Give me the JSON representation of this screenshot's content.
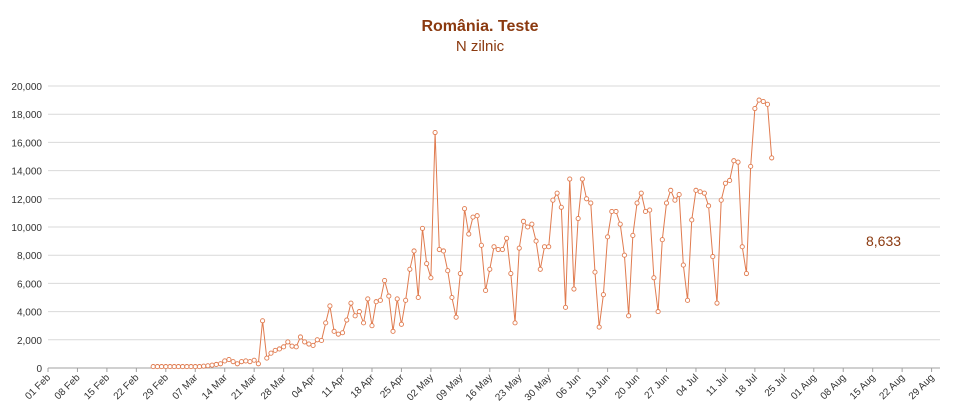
{
  "chart_data": {
    "type": "line",
    "title": "România. Teste",
    "subtitle": "N zilnic",
    "annotation": "8,633",
    "ylim": [
      0,
      20000
    ],
    "yticks": [
      0,
      2000,
      4000,
      6000,
      8000,
      10000,
      12000,
      14000,
      16000,
      18000,
      20000
    ],
    "ytick_labels": [
      "0",
      "2,000",
      "4,000",
      "6,000",
      "8,000",
      "10,000",
      "12,000",
      "14,000",
      "16,000",
      "18,000",
      "20,000"
    ],
    "xlim": [
      "2020-02-01",
      "2020-08-31"
    ],
    "xtick_labels": [
      "01 Feb",
      "08 Feb",
      "15 Feb",
      "22 Feb",
      "29 Feb",
      "07 Mar",
      "14 Mar",
      "21 Mar",
      "28 Mar",
      "04 Apr",
      "11 Apr",
      "18 Apr",
      "25 Apr",
      "02 May",
      "09 May",
      "16 May",
      "23 May",
      "30 May",
      "06 Jun",
      "13 Jun",
      "20 Jun",
      "27 Jun",
      "04 Jul",
      "11 Jul",
      "18 Jul",
      "25 Jul",
      "01 Aug",
      "08 Aug",
      "15 Aug",
      "22 Aug",
      "29 Aug"
    ],
    "grid": true,
    "line_color": "#E07B4F",
    "text_color": "#8B3A10",
    "series": [
      {
        "start_date": "2020-02-26",
        "values": [
          100,
          100,
          100,
          100,
          100,
          100,
          100,
          100,
          100,
          100,
          100,
          100,
          130,
          160,
          200,
          250,
          300,
          500,
          600,
          450,
          300,
          450,
          500,
          450,
          550,
          300,
          3350,
          700,
          1050,
          1250,
          1350,
          1500,
          1850,
          1550,
          1500,
          2200,
          1850,
          1700,
          1600,
          2000,
          1950,
          3200,
          4400,
          2600,
          2400,
          2500,
          3400,
          4600,
          3700,
          4000,
          3200,
          4900,
          3000,
          4700,
          4800,
          6200,
          5100,
          2600,
          4900,
          3100,
          4800,
          7000,
          8300,
          5000,
          9900,
          7400,
          6400,
          16700,
          8400,
          8300,
          6900,
          5000,
          3600,
          6700,
          11300,
          9500,
          10700,
          10800,
          8700,
          5500,
          7000,
          8600,
          8400,
          8400,
          9200,
          6700,
          3200,
          8500,
          10400,
          10000,
          10200,
          9000,
          7000,
          8600,
          8600,
          11900,
          12400,
          11400,
          4300,
          13400,
          5600,
          10600,
          13400,
          12000,
          11700,
          6800,
          2900,
          5200,
          9300,
          11100,
          11100,
          10200,
          8000,
          3700,
          9400,
          11700,
          12400,
          11100,
          11200,
          6400,
          4000,
          9100,
          11700,
          12600,
          11900,
          12300,
          7300,
          4800,
          10500,
          12600,
          12500,
          12400,
          11500,
          7900,
          4600,
          11900,
          13100,
          13300,
          14700,
          14600,
          8600,
          6700,
          14300,
          18400,
          19000,
          18900,
          18700,
          14900
        ]
      }
    ]
  }
}
